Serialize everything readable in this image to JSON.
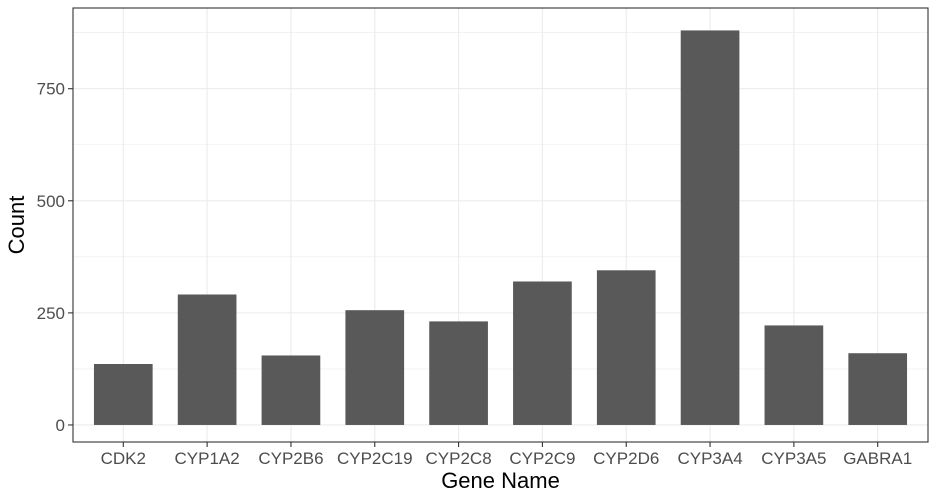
{
  "chart_data": {
    "type": "bar",
    "title": "",
    "xlabel": "Gene Name",
    "ylabel": "Count",
    "categories": [
      "CDK2",
      "CYP1A2",
      "CYP2B6",
      "CYP2C19",
      "CYP2C8",
      "CYP2C9",
      "CYP2D6",
      "CYP3A4",
      "CYP3A5",
      "GABRA1"
    ],
    "values": [
      136,
      291,
      155,
      256,
      231,
      320,
      345,
      880,
      222,
      160
    ],
    "ylim": [
      -38,
      930
    ],
    "yticks": [
      0,
      250,
      500,
      750
    ],
    "yminor": [
      125,
      375,
      625,
      875
    ],
    "grid": true,
    "legend": "none",
    "colors": {
      "bar": "#595959",
      "grid": "#ebebeb",
      "panel_border": "#333333",
      "tick_text": "#4d4d4d",
      "title_text": "#000000"
    }
  }
}
